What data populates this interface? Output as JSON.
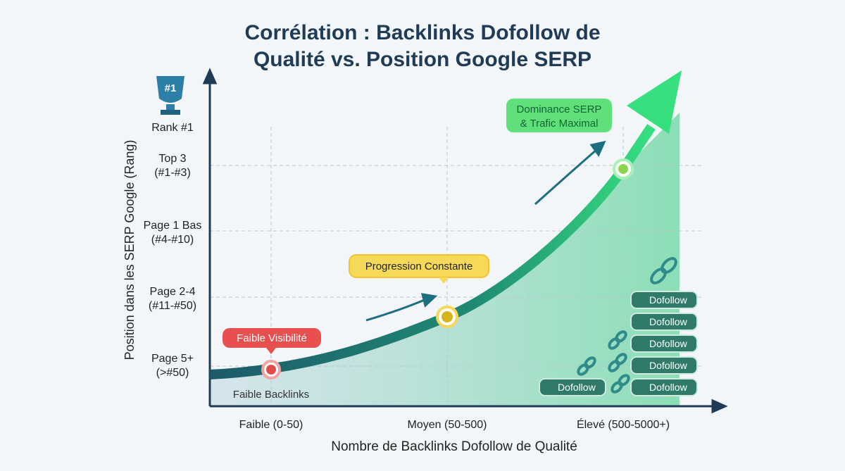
{
  "title": "Corrélation : Backlinks Dofollow de Qualité vs. Position Google SERP",
  "trophy": "#1",
  "y_axis": {
    "label": "Position dans les SERP Google (Rang)",
    "levels": [
      {
        "lines": [
          "Rank #1"
        ]
      },
      {
        "lines": [
          "Top 3",
          "(#1-#3)"
        ]
      },
      {
        "lines": [
          "Page 1 Bas",
          "(#4-#10)"
        ]
      },
      {
        "lines": [
          "Page 2-4",
          "(#11-#50)"
        ]
      },
      {
        "lines": [
          "Page 5+",
          "(>#50)"
        ]
      }
    ]
  },
  "x_axis": {
    "label": "Nombre de Backlinks Dofollow de Qualité",
    "categories": [
      "Faible (0-50)",
      "Moyen (50-500)",
      "Élevé (500-5000+)"
    ]
  },
  "annotations": {
    "low": "Faible Visibilité",
    "mid": "Progression Constante",
    "high": [
      "Dominance SERP",
      "& Trafic Maximal"
    ],
    "base": "Faible Backlinks"
  },
  "badges": [
    "Dofollow",
    "Dofollow",
    "Dofollow",
    "Dofollow",
    "Dofollow",
    "Dofollow"
  ]
}
